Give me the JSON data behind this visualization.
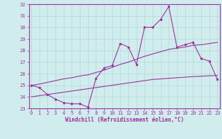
{
  "x_hours": [
    0,
    1,
    2,
    3,
    4,
    5,
    6,
    7,
    8,
    9,
    10,
    11,
    12,
    13,
    14,
    15,
    16,
    17,
    18,
    19,
    20,
    21,
    22,
    23
  ],
  "main_line": [
    25.0,
    24.8,
    24.2,
    23.8,
    23.5,
    23.4,
    23.4,
    23.1,
    25.6,
    26.5,
    26.7,
    28.6,
    28.3,
    26.8,
    30.0,
    30.0,
    30.7,
    31.8,
    28.3,
    28.5,
    28.7,
    27.3,
    27.1,
    25.5
  ],
  "diag_upper": [
    25.0,
    25.1,
    25.25,
    25.4,
    25.55,
    25.65,
    25.8,
    25.9,
    26.1,
    26.3,
    26.55,
    26.8,
    27.0,
    27.25,
    27.5,
    27.7,
    27.9,
    28.1,
    28.2,
    28.3,
    28.45,
    28.5,
    28.6,
    28.7
  ],
  "diag_lower": [
    24.0,
    24.1,
    24.2,
    24.3,
    24.4,
    24.5,
    24.6,
    24.7,
    24.8,
    24.9,
    25.0,
    25.1,
    25.2,
    25.3,
    25.4,
    25.5,
    25.55,
    25.6,
    25.65,
    25.7,
    25.75,
    25.78,
    25.82,
    25.85
  ],
  "line_color": "#9B30A0",
  "bg_color": "#d0ecec",
  "grid_color": "#b0d8d8",
  "ylim": [
    23,
    32
  ],
  "yticks": [
    23,
    24,
    25,
    26,
    27,
    28,
    29,
    30,
    31,
    32
  ],
  "xlim": [
    -0.3,
    23.3
  ],
  "xlabel": "Windchill (Refroidissement éolien,°C)",
  "tick_fontsize": 5.0,
  "label_fontsize": 5.5
}
